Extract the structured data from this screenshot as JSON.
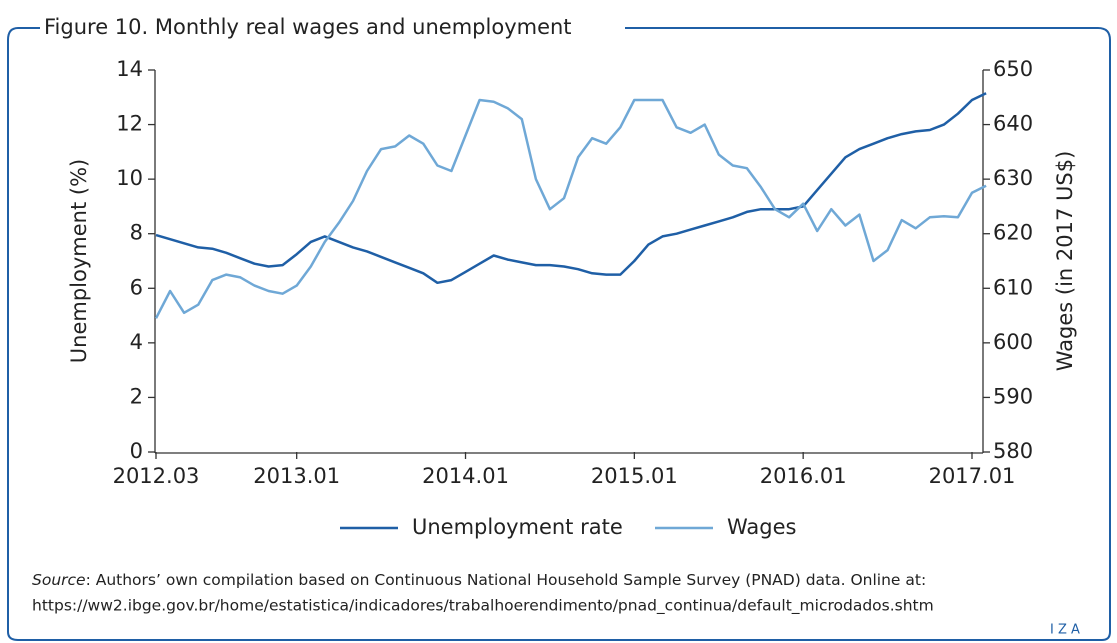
{
  "chart_data": {
    "type": "line",
    "title": "Figure 10. Monthly real wages and unemployment",
    "x": [
      "2012.03",
      "2012.04",
      "2012.05",
      "2012.06",
      "2012.07",
      "2012.08",
      "2012.09",
      "2012.10",
      "2012.11",
      "2012.12",
      "2013.01",
      "2013.02",
      "2013.03",
      "2013.04",
      "2013.05",
      "2013.06",
      "2013.07",
      "2013.08",
      "2013.09",
      "2013.10",
      "2013.11",
      "2013.12",
      "2014.01",
      "2014.02",
      "2014.03",
      "2014.04",
      "2014.05",
      "2014.06",
      "2014.07",
      "2014.08",
      "2014.09",
      "2014.10",
      "2014.11",
      "2014.12",
      "2015.01",
      "2015.02",
      "2015.03",
      "2015.04",
      "2015.05",
      "2015.06",
      "2015.07",
      "2015.08",
      "2015.09",
      "2015.10",
      "2015.11",
      "2015.12",
      "2016.01",
      "2016.02",
      "2016.03",
      "2016.04",
      "2016.05",
      "2016.06",
      "2016.07",
      "2016.08",
      "2016.09",
      "2016.10",
      "2016.11",
      "2016.12",
      "2017.01",
      "2017.02"
    ],
    "xticks": [
      "2012.03",
      "2013.01",
      "2014.01",
      "2015.01",
      "2016.01",
      "2017.01"
    ],
    "ylabel": "Unemployment (%)",
    "y2label": "Wages (in 2017 US$)",
    "ylim": [
      0,
      14
    ],
    "yticks": [
      0,
      2,
      4,
      6,
      8,
      10,
      12,
      14
    ],
    "y2lim": [
      580,
      650
    ],
    "y2ticks": [
      580,
      590,
      600,
      610,
      620,
      630,
      640,
      650
    ],
    "series": [
      {
        "name": "Unemployment rate",
        "color": "#1f5fa6",
        "axis": "y",
        "values": [
          7.95,
          7.8,
          7.65,
          7.5,
          7.45,
          7.3,
          7.1,
          6.9,
          6.8,
          6.85,
          7.25,
          7.7,
          7.9,
          7.7,
          7.5,
          7.35,
          7.15,
          6.95,
          6.75,
          6.55,
          6.2,
          6.3,
          6.6,
          6.9,
          7.2,
          7.05,
          6.95,
          6.85,
          6.85,
          6.8,
          6.7,
          6.55,
          6.5,
          6.5,
          7.0,
          7.6,
          7.9,
          8.0,
          8.15,
          8.3,
          8.45,
          8.6,
          8.8,
          8.9,
          8.9,
          8.9,
          9.0,
          9.6,
          10.2,
          10.8,
          11.1,
          11.3,
          11.5,
          11.65,
          11.75,
          11.8,
          12.0,
          12.4,
          12.9,
          13.15
        ]
      },
      {
        "name": "Wages",
        "color": "#6fa8d6",
        "axis": "y2",
        "values": [
          604.5,
          609.5,
          605.5,
          607,
          611.5,
          612.5,
          612,
          610.5,
          609.5,
          609,
          610.5,
          614,
          618.5,
          622,
          626,
          631.5,
          635.5,
          636,
          638,
          636.5,
          632.5,
          631.5,
          638,
          644.5,
          644.2,
          643,
          641,
          630,
          624.5,
          626.5,
          634,
          637.5,
          636.5,
          639.5,
          644.5,
          644.5,
          644.5,
          639.5,
          638.5,
          640,
          634.5,
          632.5,
          632,
          628.5,
          624.5,
          623,
          625.5,
          620.5,
          624.5,
          621.5,
          623.5,
          615,
          617,
          622.5,
          621,
          623,
          623.2,
          623,
          627.5,
          628.8
        ]
      }
    ],
    "source_label": "Source",
    "source_text": ": Authors’ own compilation based on Continuous National Household Sample Survey (PNAD) data. Online at:",
    "source_url": "https://ww2.ibge.gov.br/home/estatistica/indicadores/trabalhoerendimento/pnad_continua/default_microdados.shtm",
    "logo": "I Z A"
  }
}
